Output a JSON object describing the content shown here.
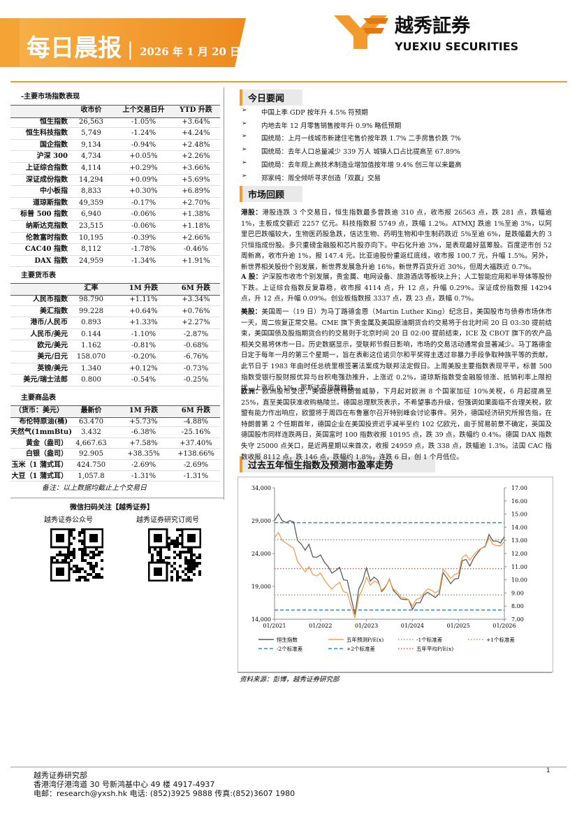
{
  "header": {
    "title": "每日晨报",
    "date": "2026 年 1 月 20 日",
    "logo_cn": "越秀証券",
    "logo_en": "YUEXIU SECURITIES"
  },
  "indices_table": {
    "caption": "-主要市场指数表现",
    "headers": [
      "收市价",
      "上个交易日升",
      "YTD 升跌"
    ],
    "rows": [
      [
        "恒生指数",
        "26,563",
        "-1.05%",
        "+3.64%"
      ],
      [
        "恒生科技指数",
        "5,749",
        "-1.24%",
        "+4.24%"
      ],
      [
        "国企指数",
        "9,134",
        "-0.94%",
        "+2.48%"
      ],
      [
        "沪深 300",
        "4,734",
        "+0.05%",
        "+2.26%"
      ],
      [
        "上证综合指数",
        "4,114",
        "+0.29%",
        "+3.66%"
      ],
      [
        "深证成份指数",
        "14,294",
        "+0.09%",
        "+5.69%"
      ],
      [
        "中小板指",
        "8,833",
        "+0.30%",
        "+6.89%"
      ],
      [
        "道琼斯指数",
        "49,359",
        "-0.17%",
        "+2.70%"
      ],
      [
        "标普 500 指数",
        "6,940",
        "-0.06%",
        "+1.38%"
      ],
      [
        "纳斯达克指数",
        "23,515",
        "-0.06%",
        "+1.18%"
      ],
      [
        "伦敦富时指数",
        "10,195",
        "-0.39%",
        "+2.66%"
      ],
      [
        "CAC40 指数",
        "8,112",
        "-1.78%",
        "-0.46%"
      ],
      [
        "DAX 指数",
        "24,959",
        "-1.34%",
        "+1.91%"
      ]
    ]
  },
  "currency_table": {
    "caption": "主要货币表",
    "headers": [
      "汇率",
      "1M 升跌",
      "6M 升跌"
    ],
    "rows": [
      [
        "人民币指数",
        "98.790",
        "+1.11%",
        "+3.34%"
      ],
      [
        "美汇指数",
        "99.228",
        "+0.64%",
        "+0.76%"
      ],
      [
        "港币/人民币",
        "0.893",
        "+1.33%",
        "+2.27%"
      ],
      [
        "人民币/美元",
        "0.144",
        "-1.10%",
        "-2.87%"
      ],
      [
        "欧元/美元",
        "1.162",
        "-0.81%",
        "-0.68%"
      ],
      [
        "美元/日元",
        "158.070",
        "-0.20%",
        "-6.76%"
      ],
      [
        "英镑/美元",
        "1.340",
        "+0.12%",
        "-0.73%"
      ],
      [
        "美元/瑞士法郎",
        "0.800",
        "-0.54%",
        "-0.25%"
      ]
    ]
  },
  "commodity_table": {
    "caption": "主要商品表",
    "headers": [
      "（货币：美元）",
      "最新价",
      "1M 升跌",
      "6M 升跌"
    ],
    "rows": [
      [
        "布伦特原油(桶)",
        "63.470",
        "+5.73%",
        "-4.88%"
      ],
      [
        "天然气(1mmBtu)",
        "3.432",
        "-6.38%",
        "-25.16%"
      ],
      [
        "黄金（盎司）",
        "4,667.63",
        "+7.58%",
        "+37.40%"
      ],
      [
        "白银（盎司）",
        "92.905",
        "+38.35%",
        "+138.66%"
      ],
      [
        "玉米（1 蒲式耳）",
        "424.750",
        "-2.69%",
        "-2.69%"
      ],
      [
        "大豆（1 蒲式耳）",
        "1,057.8",
        "-1.31%",
        "-1.31%"
      ]
    ],
    "note": "备注：以上数据均截止上个交易日"
  },
  "wechat": {
    "title": "微信扫码关注【越秀证券】",
    "qr1": "越秀证券公众号",
    "qr2": "越秀证券研究订阅号"
  },
  "news": {
    "title": "今日要闻",
    "items": [
      "中国上季 GDP 按年升 4.5% 符预期",
      "内地去年 12 月零售销售按年升 0.9% 略低预期",
      "国统局：上月一线城市新建住宅售价按年跌 1.7% 二手房售价跌 7%",
      "国统局：去年人口总量减少 339 万人 城镇人口占比提高至 67.89%",
      "国统局：去年规上高技术制造业增加值按年增 9.4% 创三年以来最高",
      "郑家纯：周全倾听寻求创造「双赢」交易"
    ]
  },
  "market": {
    "title": "市场回顾",
    "paragraphs": [
      {
        "lead": "港股：",
        "text": "港股连跌 3 个交易日，恒生指数最多曾跌逾 310 点，收市报 26563 点，跌 281 点，跌幅逾 1%，主板成交额近 2257 亿元。科技指数报 5749 点，跌幅 1.2%。ATMXJ 跌逾 1%至逾 3%，以阿里巴巴跌幅较大，生物医药股急跌，信达生物、药明生物和中生制药跌近 5%至逾 6%，是跌幅最大的 3 只恒指成份股。多只重磅金融股和芯片股亦向下。中石化升逾 3%，是表现最好蓝筹股。百度逆市创 52 周新高，收市升逾 1%，报 147.4 元。比亚迪股份重返红底线，收市报 100.7 元，升幅 1.5%。另外，新世界相关股份个别发展，新世界发展急升逾 16%，新世界百货升近 30%，但周大福跌近 0.7%。"
      },
      {
        "lead": "A 股：",
        "text": "沪深股市收市个别发展，贵金属、电网设备、旅游酒店等板块上升；人工智能应用和半导体等股份下跌。上证综合指数反复靠稳，收市报 4114 点，升 12 点，升幅 0.29%。深证成份指数报 14294 点，升 12 点，升幅 0.09%。创业板指数报 3337 点，跌 23 点，跌幅 0.7%。"
      },
      {
        "lead": "美股：",
        "text": "美国周一（19 日）为马丁路德金恩（Martin Luther King）纪念日，美国股市与债券市场休市一天，周二恢复正常交易。CME 旗下贵金属及美国原油期货合约交易将于台北时间 20 日 03:30 提前结束，美国国债及股指期货合约的交易则于北京时间 20 日 02:00 提前结束，ICE 及 CBOT 旗下的农产品相关交易将休市一日。历史数据显示，受联邦节假日影响，市场的交易活动通常会显著减少。马丁路德金日定于每年一月的第三个星期一，旨在表彰这位诺贝尔和平奖得主透过非暴力手段争取种族平等的贡献，此节日于 1983 年由时任总统里根签署法案成为联邦法定假日。上周美股主要指数表现平平，标普 500 指数受银行股财报优异与台积电强劲推升，上涨近 0.2%，道琼斯指数受金融股领涨、抵销利率上限担忧，上涨近 0.1%，那斯达克指数微跌。"
      },
      {
        "lead": "欧洲：",
        "text": "欧洲股市受压，美国总统特朗普威胁，下月起对欧洲 8 个国家加征 10%关税，6 月起提高至 25%，直至美国获准收购格陵兰。德国总理默茨表示，不希望事态升级，但强调如果面临不合理关税，欧盟有能力作出响应，欧盟将于周四在布鲁塞尔召开特别峰会讨论事件。另外，德国经济研究所报告指，在特朗普第 2 个任期首年，德国企业在美国投资近乎减半至约 102 亿欧元，由于贸易前景不确定，英国及德国股市同样连跌两日，英国富时 100 指数收报 10195 点，跌 39 点，跌幅约 0.4%。德国 DAX 指数失守 25000 点关口，是近两星期以来首次，收报 24959 点，跌 338 点，跌幅逾 1.3%。法国 CAC 指数收报 8112 点，跌 146 点，跌幅约 1.8%，连跌 6 日，创 1 个月低位。"
      }
    ]
  },
  "chart_data": {
    "type": "line",
    "title": "过去五年恒生指数及预测市盈率走势",
    "source": "资料来源：彭博，越秀证券研究部",
    "categories": [
      "01/2021",
      null,
      null,
      null,
      null,
      null,
      null,
      null,
      null,
      null,
      null,
      null,
      "01/2022",
      null,
      null,
      null,
      null,
      null,
      null,
      null,
      null,
      null,
      null,
      null,
      "01/2023",
      null,
      null,
      null,
      null,
      null,
      null,
      null,
      null,
      null,
      null,
      null,
      "01/2024",
      null,
      null,
      null,
      null,
      null,
      null,
      null,
      null,
      null,
      null,
      null,
      "01/2025",
      null,
      null,
      null,
      null,
      null,
      null,
      null,
      null,
      null,
      null,
      null,
      "01/2026"
    ],
    "series": [
      {
        "name": "恒生指数",
        "color": "#5a5a5a",
        "values": [
          29000,
          30000,
          29000,
          28700,
          29000,
          28800,
          26000,
          25400,
          24500,
          25400,
          23500,
          23400,
          23800,
          22700,
          22000,
          21000,
          21400,
          21900,
          20000,
          19900,
          17200,
          14700,
          18600,
          19800,
          21800,
          19800,
          20400,
          19900,
          18200,
          18900,
          20100,
          18400,
          17800,
          17100,
          17000,
          17000,
          15500,
          16500,
          16500,
          17700,
          18100,
          17700,
          17300,
          17900,
          21100,
          20300,
          19400,
          20100,
          20200,
          22900,
          23100,
          22100,
          23300,
          24100,
          24800,
          25100,
          26900,
          25900,
          25900,
          25600,
          26560
        ]
      },
      {
        "name": "五年预测P/E(x)",
        "color": "#f0a050",
        "axis": "y2",
        "values": [
          13.2,
          13.6,
          13.0,
          12.8,
          12.6,
          12.4,
          11.4,
          11.0,
          10.6,
          11.0,
          10.4,
          10.3,
          10.5,
          10.0,
          9.6,
          9.3,
          9.6,
          9.8,
          9.1,
          9.0,
          8.0,
          7.1,
          8.7,
          9.3,
          10.2,
          9.6,
          9.9,
          9.8,
          9.2,
          9.5,
          10.0,
          9.3,
          9.1,
          8.7,
          8.6,
          8.5,
          8.0,
          8.5,
          8.6,
          9.0,
          9.3,
          9.2,
          9.0,
          9.2,
          10.8,
          10.5,
          10.1,
          10.4,
          10.5,
          11.7,
          11.9,
          11.5,
          11.9,
          12.2,
          12.4,
          12.5,
          13.2,
          12.7,
          12.6,
          12.6,
          12.9
        ]
      }
    ],
    "ref_lines": [
      {
        "name": "-1个标准差",
        "color": "#6cbf5c",
        "style": "dotted",
        "value": 8.85,
        "axis": "y2"
      },
      {
        "name": "+1个标准差",
        "color": "#6cbf5c",
        "style": "dotted",
        "value": 13.05,
        "axis": "y2"
      },
      {
        "name": "-2个标准差",
        "color": "#2e86d6",
        "style": "dashed",
        "value": 7.7,
        "axis": "y2"
      },
      {
        "name": "+2个标准差",
        "color": "#2e86d6",
        "style": "dashed",
        "value": 14.35,
        "axis": "y2"
      },
      {
        "name": "五年平均P/E(x)",
        "color": "#e0504a",
        "style": "dotted",
        "value": 10.85,
        "axis": "y2"
      }
    ],
    "ylim": [
      14000,
      34000
    ],
    "yticks": [
      {
        "value": 14000,
        "label": "14,000"
      },
      {
        "value": 19000,
        "label": "19,000"
      },
      {
        "value": 24000,
        "label": "24,000"
      },
      {
        "value": 29000,
        "label": "29,000"
      },
      {
        "value": 34000,
        "label": "34,000"
      }
    ],
    "y2lim": [
      7,
      17
    ],
    "y2ticks": [
      {
        "value": 7,
        "label": "7.00"
      },
      {
        "value": 8,
        "label": "8.00"
      },
      {
        "value": 9,
        "label": "9.00"
      },
      {
        "value": 10,
        "label": "10.00"
      },
      {
        "value": 11,
        "label": "11.00"
      },
      {
        "value": 12,
        "label": "12.00"
      },
      {
        "value": 13,
        "label": "13.00"
      },
      {
        "value": 14,
        "label": "14.00"
      },
      {
        "value": 15,
        "label": "15.00"
      },
      {
        "value": 16,
        "label": "16.00"
      },
      {
        "value": 17,
        "label": "17.00"
      }
    ],
    "grid": false
  },
  "footer": {
    "dept": "越秀证券研究部",
    "address": "香港湾仔港湾道 30 号新鸿基中心 49 楼 4917-4937",
    "contact": "电邮：research@yxsh.hk 电话: (852)3925 9888 传真:(852)3607 1980",
    "page": "1"
  }
}
